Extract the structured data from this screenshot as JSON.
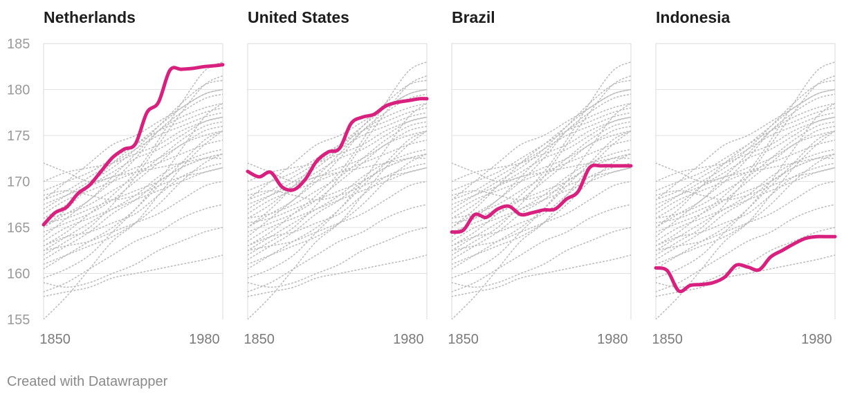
{
  "chart_data": {
    "type": "line",
    "layout": "small-multiples",
    "y_axis": {
      "min": 155,
      "max": 185,
      "ticks": [
        155,
        160,
        165,
        170,
        175,
        180,
        185
      ]
    },
    "x_axis": {
      "min": 1840,
      "max": 1996,
      "ticks": [
        1850,
        1980
      ]
    },
    "highlight_color": "#d8207f",
    "background_color": "#bdbdbd",
    "panels": [
      {
        "name": "Netherlands",
        "series": {
          "x": [
            1840,
            1850,
            1860,
            1870,
            1880,
            1890,
            1900,
            1910,
            1920,
            1930,
            1940,
            1950,
            1960,
            1970,
            1980,
            1990,
            1996
          ],
          "values": [
            165.3,
            166.6,
            167.2,
            168.7,
            169.6,
            171.1,
            172.6,
            173.5,
            174.1,
            177.5,
            178.6,
            182.1,
            182.2,
            182.3,
            182.5,
            182.6,
            182.7
          ]
        }
      },
      {
        "name": "United States",
        "series": {
          "x": [
            1840,
            1850,
            1860,
            1870,
            1880,
            1890,
            1900,
            1910,
            1920,
            1930,
            1940,
            1950,
            1960,
            1970,
            1980,
            1990,
            1996
          ],
          "values": [
            171.1,
            170.5,
            171.0,
            169.4,
            169.1,
            170.2,
            172.2,
            173.2,
            173.6,
            176.3,
            177.0,
            177.3,
            178.2,
            178.6,
            178.8,
            179.0,
            179.0
          ]
        }
      },
      {
        "name": "Brazil",
        "series": {
          "x": [
            1840,
            1850,
            1860,
            1870,
            1880,
            1890,
            1900,
            1910,
            1920,
            1930,
            1940,
            1950,
            1960,
            1970,
            1980,
            1990,
            1996
          ],
          "values": [
            164.5,
            164.7,
            166.4,
            166.1,
            167.0,
            167.3,
            166.4,
            166.6,
            166.9,
            167.0,
            168.1,
            168.9,
            171.5,
            171.7,
            171.7,
            171.7,
            171.7
          ]
        }
      },
      {
        "name": "Indonesia",
        "series": {
          "x": [
            1840,
            1850,
            1860,
            1870,
            1880,
            1890,
            1900,
            1910,
            1920,
            1930,
            1940,
            1950,
            1960,
            1970,
            1980,
            1990,
            1996
          ],
          "values": [
            160.6,
            160.3,
            158.1,
            158.7,
            158.8,
            159.0,
            159.6,
            160.9,
            160.7,
            160.4,
            161.8,
            162.5,
            163.2,
            163.8,
            164.0,
            164.0,
            164.0
          ]
        }
      }
    ],
    "background_series": [
      {
        "x": [
          1840,
          1860,
          1880,
          1900,
          1920,
          1940,
          1960,
          1980,
          1996
        ],
        "values": [
          155.0,
          157.5,
          160.5,
          163.5,
          165.5,
          168.5,
          171.5,
          174.0,
          175.5
        ]
      },
      {
        "x": [
          1840,
          1860,
          1880,
          1900,
          1920,
          1940,
          1960,
          1980,
          1996
        ],
        "values": [
          158.0,
          159.0,
          160.5,
          162.0,
          163.5,
          164.5,
          166.0,
          167.0,
          167.5
        ]
      },
      {
        "x": [
          1840,
          1860,
          1880,
          1900,
          1920,
          1940,
          1960,
          1980,
          1996
        ],
        "values": [
          159.5,
          160.5,
          162.0,
          164.5,
          167.0,
          170.0,
          173.5,
          177.0,
          178.5
        ]
      },
      {
        "x": [
          1840,
          1860,
          1880,
          1900,
          1920,
          1940,
          1960,
          1980,
          1996
        ],
        "values": [
          160.5,
          162.0,
          163.5,
          165.0,
          167.0,
          169.5,
          172.0,
          174.5,
          175.5
        ]
      },
      {
        "x": [
          1840,
          1860,
          1880,
          1900,
          1920,
          1940,
          1960,
          1980,
          1996
        ],
        "values": [
          161.5,
          163.0,
          164.5,
          166.5,
          168.0,
          170.0,
          171.5,
          172.5,
          173.0
        ]
      },
      {
        "x": [
          1840,
          1860,
          1880,
          1900,
          1920,
          1940,
          1960,
          1980,
          1996
        ],
        "values": [
          162.0,
          163.5,
          165.0,
          167.5,
          170.5,
          174.0,
          177.5,
          180.5,
          181.5
        ]
      },
      {
        "x": [
          1840,
          1860,
          1880,
          1900,
          1920,
          1940,
          1960,
          1980,
          1996
        ],
        "values": [
          162.5,
          163.0,
          163.5,
          164.5,
          165.5,
          166.5,
          168.0,
          169.5,
          170.0
        ]
      },
      {
        "x": [
          1840,
          1860,
          1880,
          1900,
          1920,
          1940,
          1960,
          1980,
          1996
        ],
        "values": [
          163.0,
          164.5,
          166.5,
          168.5,
          171.0,
          174.5,
          178.5,
          182.0,
          183.0
        ]
      },
      {
        "x": [
          1840,
          1860,
          1880,
          1900,
          1920,
          1940,
          1960,
          1980,
          1996
        ],
        "values": [
          163.5,
          165.0,
          166.0,
          167.0,
          168.0,
          169.0,
          170.0,
          171.0,
          171.5
        ]
      },
      {
        "x": [
          1840,
          1860,
          1880,
          1900,
          1920,
          1940,
          1960,
          1980,
          1996
        ],
        "values": [
          164.0,
          166.0,
          168.0,
          170.0,
          172.5,
          175.5,
          177.5,
          179.0,
          179.5
        ]
      },
      {
        "x": [
          1840,
          1860,
          1880,
          1900,
          1920,
          1940,
          1960,
          1980,
          1996
        ],
        "values": [
          164.5,
          165.5,
          166.5,
          168.0,
          170.0,
          172.0,
          174.0,
          175.0,
          175.5
        ]
      },
      {
        "x": [
          1840,
          1860,
          1880,
          1900,
          1920,
          1940,
          1960,
          1980,
          1996
        ],
        "values": [
          165.0,
          166.5,
          168.0,
          170.5,
          173.0,
          175.5,
          177.0,
          178.0,
          178.5
        ]
      },
      {
        "x": [
          1840,
          1860,
          1880,
          1900,
          1920,
          1940,
          1960,
          1980,
          1996
        ],
        "values": [
          165.5,
          166.0,
          167.0,
          168.0,
          169.0,
          170.0,
          171.5,
          172.5,
          173.0
        ]
      },
      {
        "x": [
          1840,
          1860,
          1880,
          1900,
          1920,
          1940,
          1960,
          1980,
          1996
        ],
        "values": [
          166.0,
          167.5,
          169.5,
          171.0,
          172.5,
          173.5,
          175.0,
          176.5,
          177.0
        ]
      },
      {
        "x": [
          1840,
          1860,
          1880,
          1900,
          1920,
          1940,
          1960,
          1980,
          1996
        ],
        "values": [
          166.5,
          168.0,
          169.0,
          170.0,
          171.0,
          172.0,
          173.0,
          174.0,
          174.5
        ]
      },
      {
        "x": [
          1840,
          1860,
          1880,
          1900,
          1920,
          1940,
          1960,
          1980,
          1996
        ],
        "values": [
          167.0,
          168.5,
          170.0,
          171.5,
          173.5,
          176.0,
          178.5,
          180.5,
          181.0
        ]
      },
      {
        "x": [
          1840,
          1860,
          1880,
          1900,
          1920,
          1940,
          1960,
          1980,
          1996
        ],
        "values": [
          167.5,
          168.5,
          169.5,
          170.5,
          171.0,
          171.5,
          172.0,
          172.5,
          172.5
        ]
      },
      {
        "x": [
          1840,
          1860,
          1880,
          1900,
          1920,
          1940,
          1960,
          1980,
          1996
        ],
        "values": [
          168.0,
          169.0,
          170.5,
          172.0,
          173.5,
          175.0,
          176.0,
          177.0,
          177.5
        ]
      },
      {
        "x": [
          1840,
          1860,
          1880,
          1900,
          1920,
          1940,
          1960,
          1980,
          1996
        ],
        "values": [
          168.5,
          169.0,
          168.5,
          168.0,
          168.5,
          169.5,
          170.5,
          171.0,
          171.5
        ]
      },
      {
        "x": [
          1840,
          1860,
          1880,
          1900,
          1920,
          1940,
          1960,
          1980,
          1996
        ],
        "values": [
          169.0,
          170.0,
          171.0,
          172.5,
          174.0,
          175.5,
          176.5,
          177.5,
          178.0
        ]
      },
      {
        "x": [
          1840,
          1860,
          1880,
          1900,
          1920,
          1940,
          1960,
          1980,
          1996
        ],
        "values": [
          170.0,
          171.0,
          171.5,
          172.0,
          173.0,
          174.0,
          175.5,
          176.5,
          177.0
        ]
      },
      {
        "x": [
          1840,
          1860,
          1880,
          1900,
          1920,
          1940,
          1960,
          1980,
          1996
        ],
        "values": [
          172.0,
          171.0,
          170.0,
          170.5,
          171.5,
          172.5,
          174.0,
          175.5,
          176.0
        ]
      },
      {
        "x": [
          1840,
          1860,
          1880,
          1900,
          1920,
          1940,
          1960,
          1980,
          1996
        ],
        "values": [
          161.0,
          162.0,
          163.0,
          164.0,
          165.5,
          167.5,
          170.0,
          172.0,
          173.0
        ]
      },
      {
        "x": [
          1840,
          1860,
          1880,
          1900,
          1920,
          1940,
          1960,
          1980,
          1996
        ],
        "values": [
          159.0,
          158.5,
          159.0,
          160.0,
          161.0,
          162.5,
          163.5,
          164.5,
          165.0
        ]
      },
      {
        "x": [
          1840,
          1860,
          1880,
          1900,
          1920,
          1940,
          1960,
          1980,
          1996
        ],
        "values": [
          157.5,
          158.0,
          158.5,
          159.5,
          160.0,
          160.5,
          161.0,
          161.5,
          162.0
        ]
      },
      {
        "x": [
          1840,
          1860,
          1880,
          1900,
          1920,
          1940,
          1960,
          1980,
          1996
        ],
        "values": [
          163.0,
          164.0,
          164.5,
          165.5,
          166.5,
          168.5,
          170.5,
          171.5,
          172.0
        ]
      },
      {
        "x": [
          1840,
          1860,
          1880,
          1900,
          1920,
          1940,
          1960,
          1980,
          1996
        ],
        "values": [
          165.0,
          167.0,
          169.5,
          172.0,
          174.0,
          176.0,
          178.0,
          179.5,
          180.0
        ]
      },
      {
        "x": [
          1840,
          1860,
          1880,
          1900,
          1920,
          1940,
          1960,
          1980,
          1996
        ],
        "values": [
          166.0,
          166.5,
          167.5,
          169.0,
          170.5,
          172.5,
          174.5,
          176.0,
          176.5
        ]
      },
      {
        "x": [
          1840,
          1860,
          1880,
          1900,
          1920,
          1940,
          1960,
          1980,
          1996
        ],
        "values": [
          162.5,
          164.0,
          165.5,
          167.0,
          168.5,
          170.5,
          172.0,
          173.0,
          173.5
        ]
      },
      {
        "x": [
          1840,
          1860,
          1880,
          1900,
          1920,
          1940,
          1960,
          1980,
          1996
        ],
        "values": [
          168.0,
          170.0,
          172.0,
          174.0,
          175.0,
          176.5,
          178.0,
          179.5,
          180.0
        ]
      }
    ]
  },
  "footer": {
    "credit": "Created with Datawrapper"
  }
}
